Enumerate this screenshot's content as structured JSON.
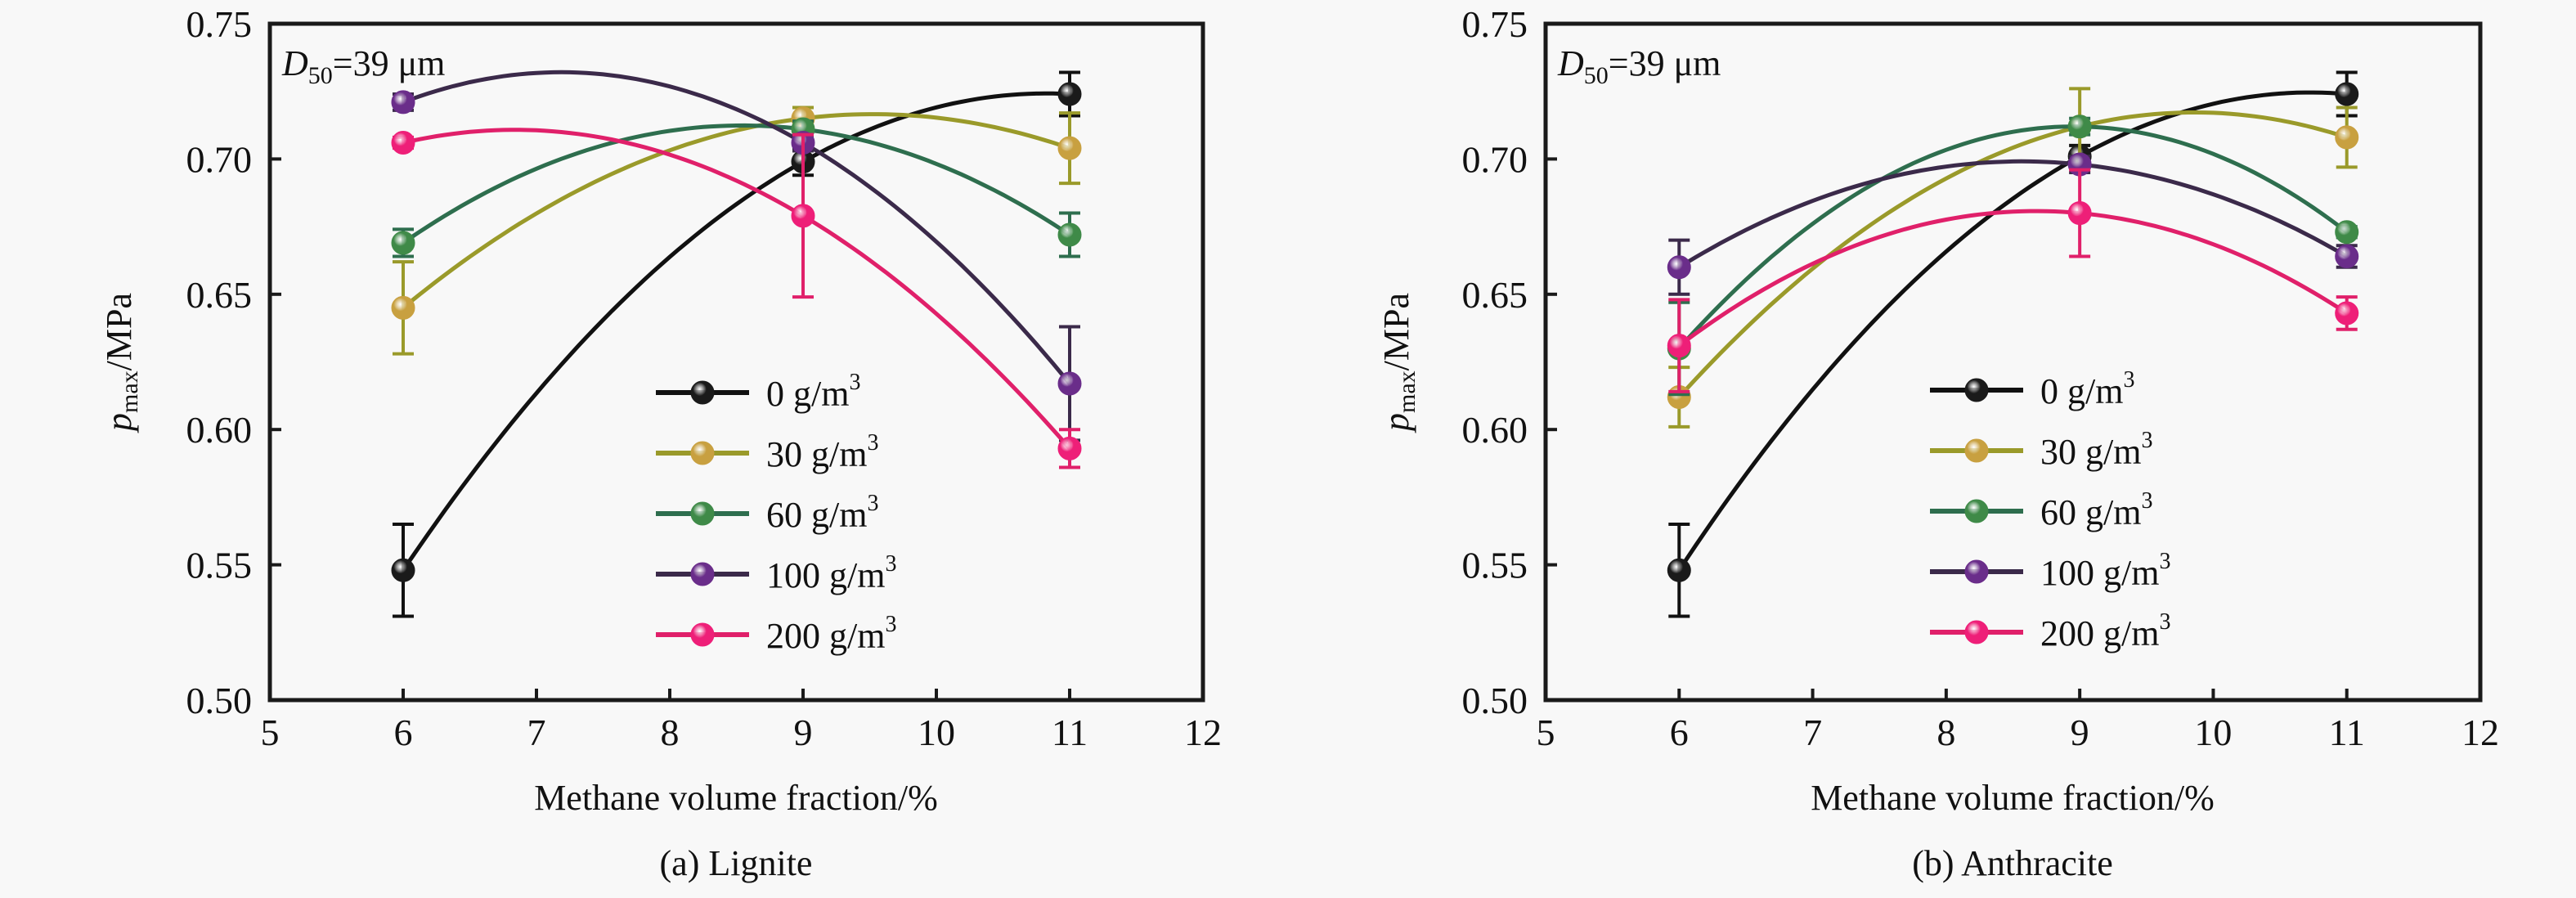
{
  "chart_data": [
    {
      "type": "line",
      "panel_id": "a",
      "caption": "(a) Lignite",
      "annotation": {
        "prefix": "D",
        "subscript": "50",
        "suffix": "=39 μm"
      },
      "xlabel": "Methane volume fraction/%",
      "ylabel": {
        "main": "p",
        "subscript": "max",
        "suffix": "/MPa"
      },
      "xlim": [
        5,
        12
      ],
      "ylim": [
        0.5,
        0.75
      ],
      "xticks": [
        5,
        6,
        7,
        8,
        9,
        10,
        11,
        12
      ],
      "yticks": [
        "0.50",
        "0.55",
        "0.60",
        "0.65",
        "0.70",
        "0.75"
      ],
      "grid": false,
      "legend_position": "center-right",
      "x": [
        6,
        9,
        11
      ],
      "series": [
        {
          "name": "0 g/m",
          "sup": "3",
          "color": "#111111",
          "marker": "#1a1a1a",
          "values": [
            0.548,
            0.699,
            0.724
          ],
          "errors": [
            0.017,
            0.005,
            0.008
          ]
        },
        {
          "name": "30 g/m",
          "sup": "3",
          "color": "#9a9a2a",
          "marker": "#c8a040",
          "values": [
            0.645,
            0.715,
            0.704
          ],
          "errors": [
            0.017,
            0.004,
            0.013
          ]
        },
        {
          "name": "60 g/m",
          "sup": "3",
          "color": "#2e6e4e",
          "marker": "#3f8a48",
          "values": [
            0.669,
            0.711,
            0.672
          ],
          "errors": [
            0.005,
            0.003,
            0.008
          ]
        },
        {
          "name": "100 g/m",
          "sup": "3",
          "color": "#3b2a4a",
          "marker": "#6a2d8a",
          "values": [
            0.721,
            0.706,
            0.617
          ],
          "errors": [
            0.003,
            0.003,
            0.021
          ]
        },
        {
          "name": "200 g/m",
          "sup": "3",
          "color": "#e0206a",
          "marker": "#ee1f78",
          "values": [
            0.706,
            0.679,
            0.593
          ],
          "errors": [
            0.002,
            0.03,
            0.007
          ]
        }
      ]
    },
    {
      "type": "line",
      "panel_id": "b",
      "caption": "(b) Anthracite",
      "annotation": {
        "prefix": "D",
        "subscript": "50",
        "suffix": "=39 μm"
      },
      "xlabel": "Methane volume fraction/%",
      "ylabel": {
        "main": "p",
        "subscript": "max",
        "suffix": "/MPa"
      },
      "xlim": [
        5,
        12
      ],
      "ylim": [
        0.5,
        0.75
      ],
      "xticks": [
        5,
        6,
        7,
        8,
        9,
        10,
        11,
        12
      ],
      "yticks": [
        "0.50",
        "0.55",
        "0.60",
        "0.65",
        "0.70",
        "0.75"
      ],
      "grid": false,
      "legend_position": "center-right",
      "x": [
        6,
        9,
        11
      ],
      "series": [
        {
          "name": "0 g/m",
          "sup": "3",
          "color": "#111111",
          "marker": "#1a1a1a",
          "values": [
            0.548,
            0.701,
            0.724
          ],
          "errors": [
            0.017,
            0.004,
            0.008
          ]
        },
        {
          "name": "30 g/m",
          "sup": "3",
          "color": "#9a9a2a",
          "marker": "#c8a040",
          "values": [
            0.612,
            0.712,
            0.708
          ],
          "errors": [
            0.011,
            0.014,
            0.011
          ]
        },
        {
          "name": "60 g/m",
          "sup": "3",
          "color": "#2e6e4e",
          "marker": "#3f8a48",
          "values": [
            0.63,
            0.712,
            0.673
          ],
          "errors": [
            0.017,
            0.003,
            0.002
          ]
        },
        {
          "name": "100 g/m",
          "sup": "3",
          "color": "#3b2a4a",
          "marker": "#6a2d8a",
          "values": [
            0.66,
            0.698,
            0.664
          ],
          "errors": [
            0.01,
            0.003,
            0.004
          ]
        },
        {
          "name": "200 g/m",
          "sup": "3",
          "color": "#e0206a",
          "marker": "#ee1f78",
          "values": [
            0.631,
            0.68,
            0.643
          ],
          "errors": [
            0.017,
            0.016,
            0.006
          ]
        }
      ]
    }
  ]
}
